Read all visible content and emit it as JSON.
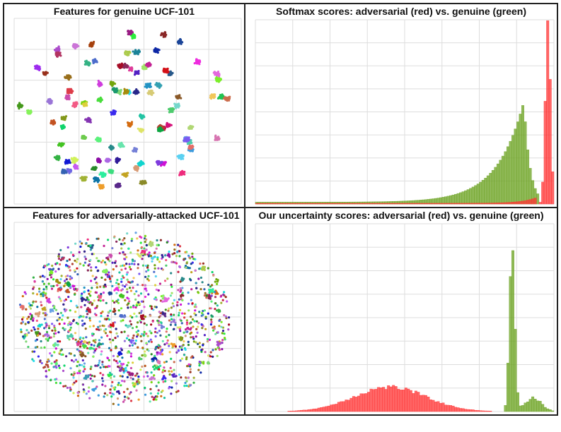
{
  "panels": {
    "tl": {
      "title": "Features for genuine UCF-101"
    },
    "tr": {
      "title": "Softmax scores: adversarial (red) vs. genuine (green)"
    },
    "bl": {
      "title": "Features for adversarially-attacked UCF-101"
    },
    "br": {
      "title": "Our uncertainty scores: adversarial (red) vs. genuine (green)"
    }
  },
  "colors": {
    "red": "#ff3333",
    "green": "#6aa11f",
    "grid": "#dddddd"
  },
  "chart_data": [
    {
      "id": "tl",
      "type": "scatter",
      "title": "Features for genuine UCF-101",
      "xlabel": "",
      "ylabel": "",
      "grid": true,
      "num_clusters": 101,
      "clustered": true
    },
    {
      "id": "tr",
      "type": "bar",
      "title": "Softmax scores: adversarial (red) vs. genuine (green)",
      "xlabel": "",
      "ylabel": "",
      "grid": true,
      "xlim": [
        0,
        1
      ],
      "ylim": [
        0,
        1
      ],
      "series": [
        {
          "color": "#6aa11f",
          "peak_x": 0.9,
          "peak_y": 0.55
        },
        {
          "color": "#ff3333",
          "peak_x": 0.98,
          "peak_y": 1.0
        }
      ]
    },
    {
      "id": "bl",
      "type": "scatter",
      "title": "Features for adversarially-attacked UCF-101",
      "xlabel": "",
      "ylabel": "",
      "grid": true,
      "num_clusters": 101,
      "clustered": false
    },
    {
      "id": "br",
      "type": "bar",
      "title": "Our uncertainty scores: adversarial (red) vs. genuine (green)",
      "xlabel": "",
      "ylabel": "",
      "grid": true,
      "xlim": [
        0,
        1
      ],
      "ylim": [
        0,
        1
      ],
      "series": [
        {
          "color": "#ff3333",
          "peak_x": 0.45,
          "peak_y": 0.13
        },
        {
          "color": "#6aa11f",
          "peak_x": 0.86,
          "peak_y": 1.0
        }
      ]
    }
  ]
}
